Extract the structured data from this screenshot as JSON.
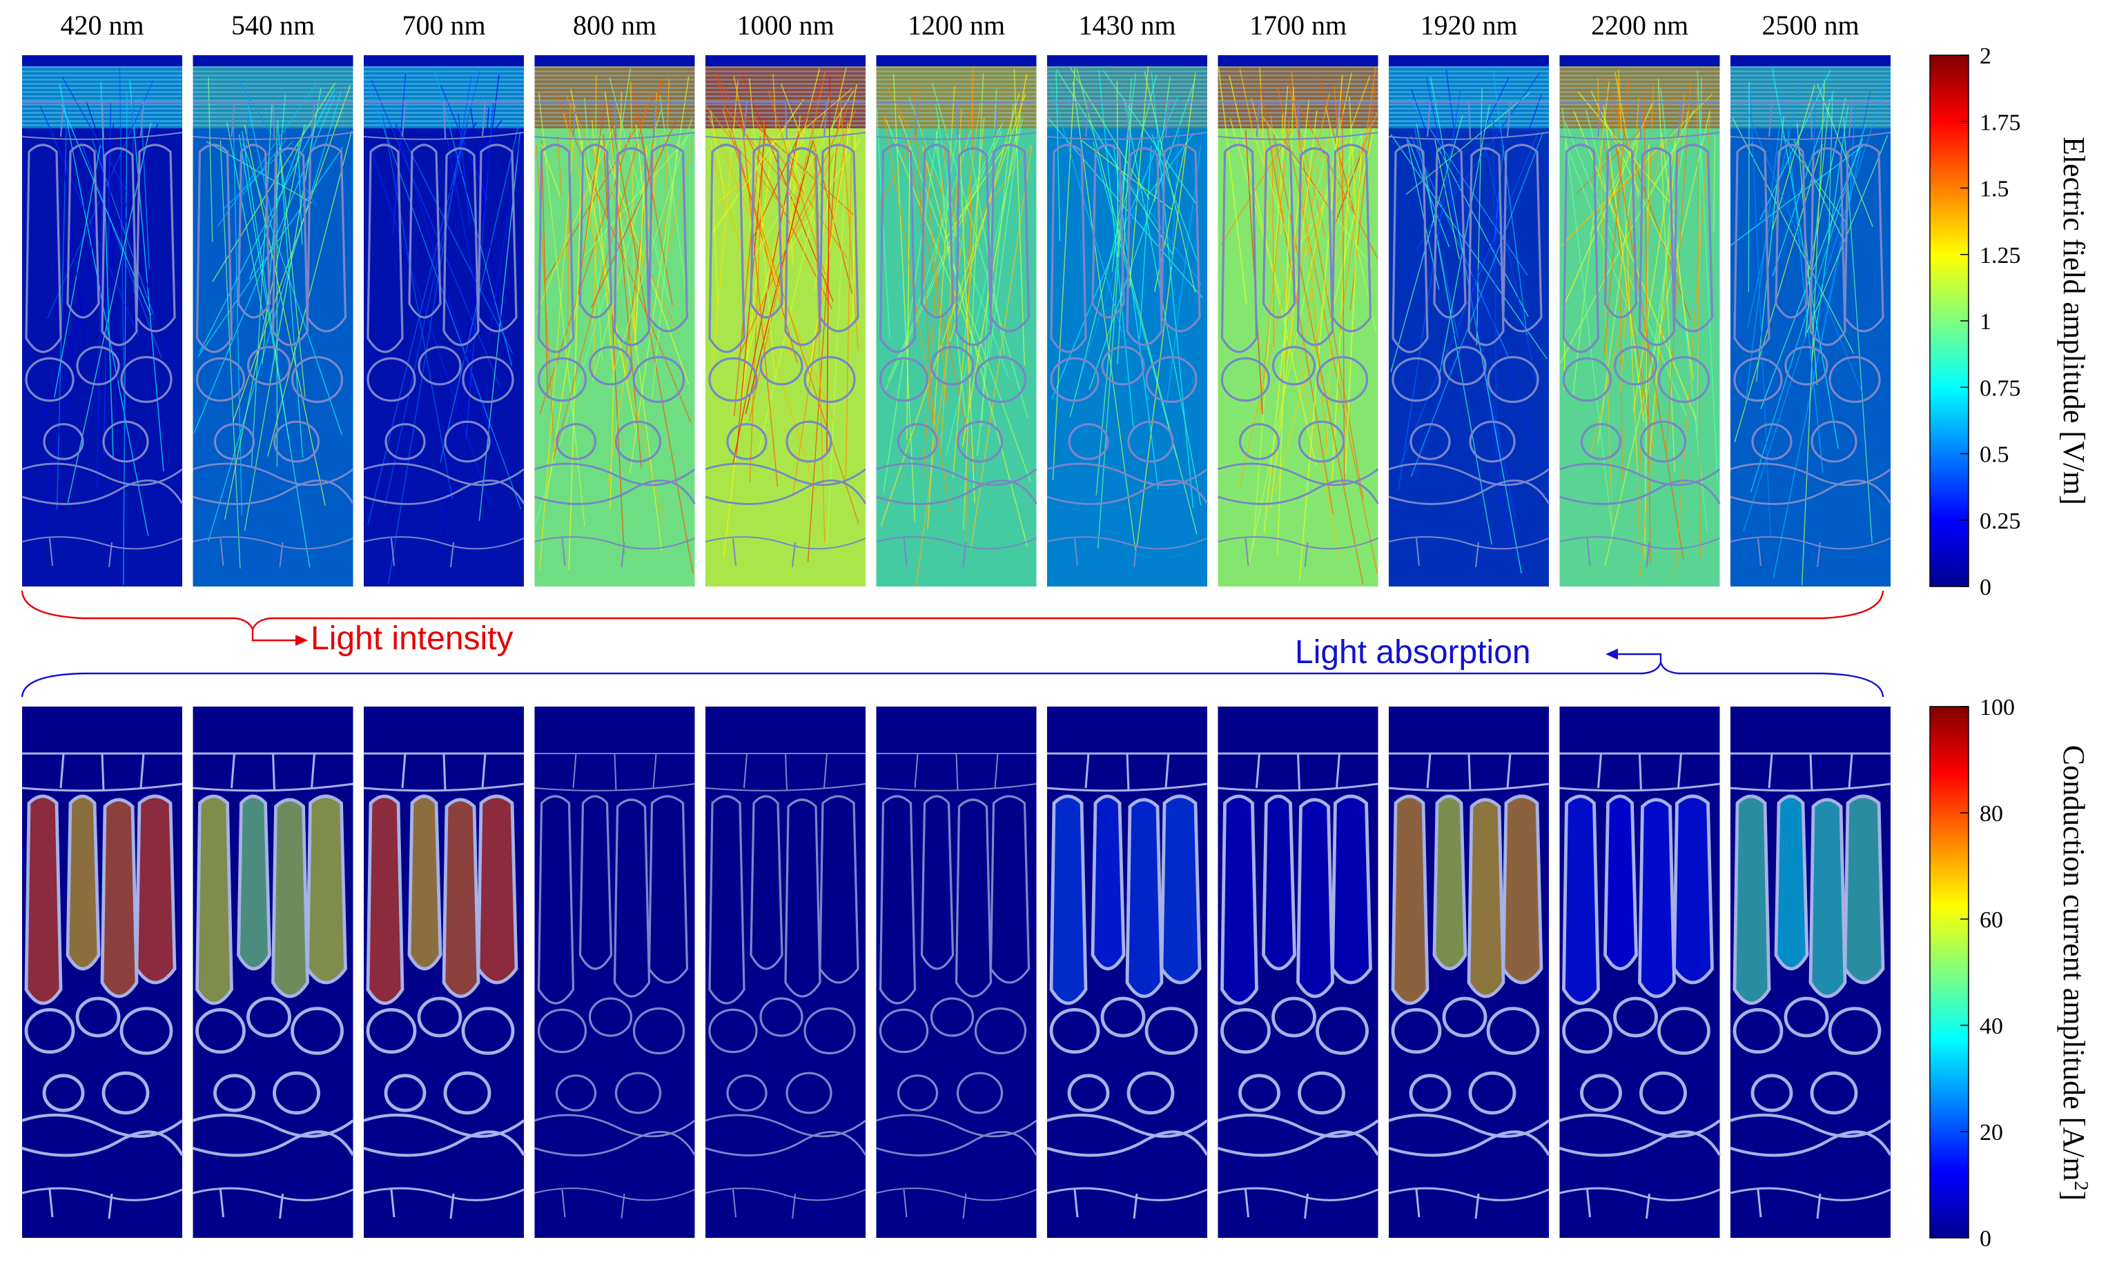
{
  "wavelengths": [
    "420 nm",
    "540 nm",
    "700 nm",
    "800 nm",
    "1000 nm",
    "1200 nm",
    "1430 nm",
    "1700 nm",
    "1920 nm",
    "2200 nm",
    "2500 nm"
  ],
  "top_panel": {
    "colorbar_label": "Electric field amplitude [V/m]",
    "colorbar_ticks": [
      "0",
      "0.25",
      "0.5",
      "0.75",
      "1",
      "1.25",
      "1.5",
      "1.75",
      "2"
    ],
    "field_levels": [
      0.15,
      0.45,
      0.15,
      0.95,
      1.1,
      0.85,
      0.55,
      1.0,
      0.3,
      0.9,
      0.45
    ]
  },
  "bottom_panel": {
    "colorbar_label_main": "Conduction current amplitude [A/m",
    "colorbar_label_sup": "2",
    "colorbar_label_end": "]",
    "colorbar_ticks": [
      "0",
      "20",
      "40",
      "60",
      "80",
      "100"
    ],
    "current_levels": [
      80,
      60,
      80,
      3,
      3,
      3,
      20,
      8,
      70,
      15,
      45
    ]
  },
  "annotations": {
    "intensity": "Light intensity",
    "absorption": "Light absorption"
  },
  "colors": {
    "background": "#00008b",
    "intensity": "#e60000",
    "absorption": "#1010d0",
    "cell_outline": "#7a86c8"
  },
  "colormap": "jet"
}
